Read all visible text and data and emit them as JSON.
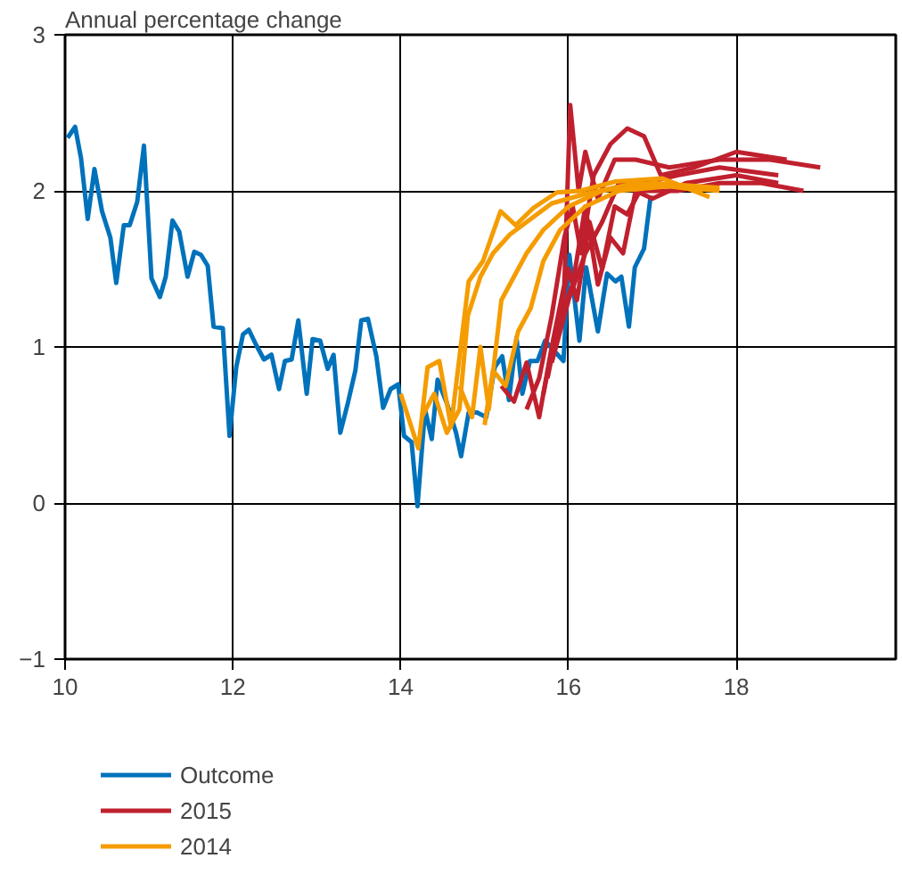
{
  "chart_data": {
    "type": "line",
    "ylabel": "Annual percentage change",
    "xlim": [
      10,
      19.9
    ],
    "ylim": [
      -1,
      3
    ],
    "xticks": [
      10,
      12,
      14,
      16,
      18
    ],
    "yticks": [
      -1,
      0,
      1,
      2,
      3
    ],
    "grid": true,
    "legend": "bottom",
    "series": [
      {
        "name": "Outcome",
        "color": "#0072bb",
        "x": [
          10.03,
          10.12,
          10.19,
          10.27,
          10.35,
          10.44,
          10.54,
          10.61,
          10.7,
          10.77,
          10.86,
          10.94,
          11.03,
          11.13,
          11.2,
          11.28,
          11.36,
          11.46,
          11.54,
          11.62,
          11.7,
          11.77,
          11.88,
          11.96,
          12.04,
          12.12,
          12.19,
          12.28,
          12.37,
          12.46,
          12.55,
          12.62,
          12.7,
          12.78,
          12.88,
          12.95,
          13.04,
          13.13,
          13.2,
          13.28,
          13.37,
          13.46,
          13.53,
          13.61,
          13.71,
          13.79,
          13.88,
          13.97,
          14.04,
          14.13,
          14.2,
          14.29,
          14.37,
          14.44,
          14.55,
          14.66,
          14.72,
          14.81,
          14.91,
          15.02,
          15.12,
          15.21,
          15.29,
          15.38,
          15.45,
          15.54,
          15.63,
          15.72,
          15.82,
          15.94,
          16.01,
          16.13,
          16.21,
          16.35,
          16.46,
          16.56,
          16.63,
          16.72,
          16.79,
          16.9,
          16.98
        ],
        "values": [
          2.34,
          2.41,
          2.21,
          1.82,
          2.14,
          1.87,
          1.7,
          1.41,
          1.78,
          1.78,
          1.93,
          2.29,
          1.44,
          1.32,
          1.45,
          1.81,
          1.74,
          1.45,
          1.61,
          1.59,
          1.52,
          1.13,
          1.12,
          0.43,
          0.87,
          1.08,
          1.11,
          1.01,
          0.92,
          0.95,
          0.73,
          0.91,
          0.92,
          1.17,
          0.7,
          1.05,
          1.04,
          0.86,
          0.95,
          0.45,
          0.64,
          0.85,
          1.17,
          1.18,
          0.94,
          0.61,
          0.73,
          0.76,
          0.43,
          0.39,
          -0.02,
          0.6,
          0.41,
          0.79,
          0.64,
          0.45,
          0.3,
          0.58,
          0.58,
          0.55,
          0.87,
          0.94,
          0.66,
          1.06,
          0.7,
          0.91,
          0.91,
          1.04,
          0.98,
          0.91,
          1.59,
          1.04,
          1.51,
          1.1,
          1.47,
          1.42,
          1.45,
          1.13,
          1.51,
          1.63,
          1.97
        ]
      },
      {
        "name": "2015",
        "color": "#c0202e",
        "x": [
          15.2,
          15.35,
          15.5,
          15.65,
          15.8,
          15.95,
          16.02,
          16.12,
          16.2,
          16.35,
          16.55,
          16.8,
          17.2,
          17.8,
          18.4,
          19.0
        ],
        "values": [
          0.75,
          0.65,
          0.9,
          0.55,
          1.0,
          1.4,
          2.55,
          2.0,
          2.25,
          1.95,
          2.2,
          2.2,
          2.15,
          2.2,
          2.2,
          2.15
        ]
      },
      {
        "color": "#c0202e",
        "x": [
          15.5,
          15.65,
          15.8,
          15.95,
          16.05,
          16.15,
          16.3,
          16.5,
          16.7,
          16.9,
          17.1,
          17.5,
          18.0,
          18.6
        ],
        "values": [
          0.6,
          0.8,
          1.2,
          1.7,
          1.9,
          1.6,
          2.1,
          2.3,
          2.4,
          2.35,
          2.1,
          2.15,
          2.25,
          2.2
        ]
      },
      {
        "color": "#c0202e",
        "x": [
          15.7,
          15.85,
          16.0,
          16.1,
          16.25,
          16.4,
          16.55,
          16.7,
          16.9,
          17.3,
          17.8,
          18.5
        ],
        "values": [
          0.7,
          1.1,
          1.5,
          1.3,
          1.8,
          1.5,
          1.9,
          1.85,
          2.05,
          2.1,
          2.15,
          2.1
        ]
      },
      {
        "color": "#c0202e",
        "x": [
          15.75,
          15.9,
          16.05,
          16.2,
          16.35,
          16.5,
          16.65,
          16.8,
          17.0,
          17.4,
          18.0,
          18.5
        ],
        "values": [
          0.8,
          1.2,
          1.4,
          1.9,
          1.4,
          1.7,
          1.6,
          2.0,
          1.95,
          2.05,
          2.1,
          2.05
        ]
      },
      {
        "color": "#c0202e",
        "x": [
          15.8,
          16.0,
          16.2,
          16.4,
          16.6,
          16.9,
          17.3,
          17.8,
          18.3,
          18.8
        ],
        "values": [
          0.9,
          1.3,
          1.6,
          1.8,
          2.05,
          2.0,
          2.0,
          2.05,
          2.05,
          2.0
        ]
      },
      {
        "name": "2014",
        "color": "#f59c00",
        "x": [
          14.0,
          14.21,
          14.32,
          14.46,
          14.6,
          14.81,
          14.98,
          15.19,
          15.37,
          15.58,
          15.86,
          16.14,
          16.56,
          17.12,
          17.68
        ],
        "values": [
          0.7,
          0.35,
          0.87,
          0.91,
          0.49,
          1.42,
          1.55,
          1.87,
          1.78,
          1.89,
          1.99,
          2.0,
          2.06,
          2.08,
          1.96
        ]
      },
      {
        "color": "#f59c00",
        "x": [
          14.25,
          14.4,
          14.55,
          14.7,
          14.8,
          14.95,
          15.1,
          15.3,
          15.5,
          15.8,
          16.2,
          16.8,
          17.4,
          17.8
        ],
        "values": [
          0.55,
          0.7,
          0.45,
          0.6,
          1.2,
          1.45,
          1.6,
          1.72,
          1.8,
          1.92,
          1.98,
          2.05,
          2.02,
          2.0
        ]
      },
      {
        "color": "#f59c00",
        "x": [
          14.7,
          14.85,
          14.95,
          15.05,
          15.2,
          15.35,
          15.5,
          15.7,
          16.0,
          16.4,
          17.0,
          17.8
        ],
        "values": [
          0.75,
          0.55,
          1.0,
          0.6,
          1.3,
          1.45,
          1.6,
          1.75,
          1.9,
          2.0,
          2.05,
          2.02
        ]
      },
      {
        "color": "#f59c00",
        "x": [
          15.0,
          15.1,
          15.25,
          15.4,
          15.55,
          15.7,
          15.9,
          16.2,
          16.6,
          17.2,
          17.6
        ],
        "values": [
          0.5,
          0.85,
          0.75,
          1.1,
          1.25,
          1.55,
          1.75,
          1.9,
          2.0,
          2.03,
          2.0
        ]
      }
    ]
  }
}
